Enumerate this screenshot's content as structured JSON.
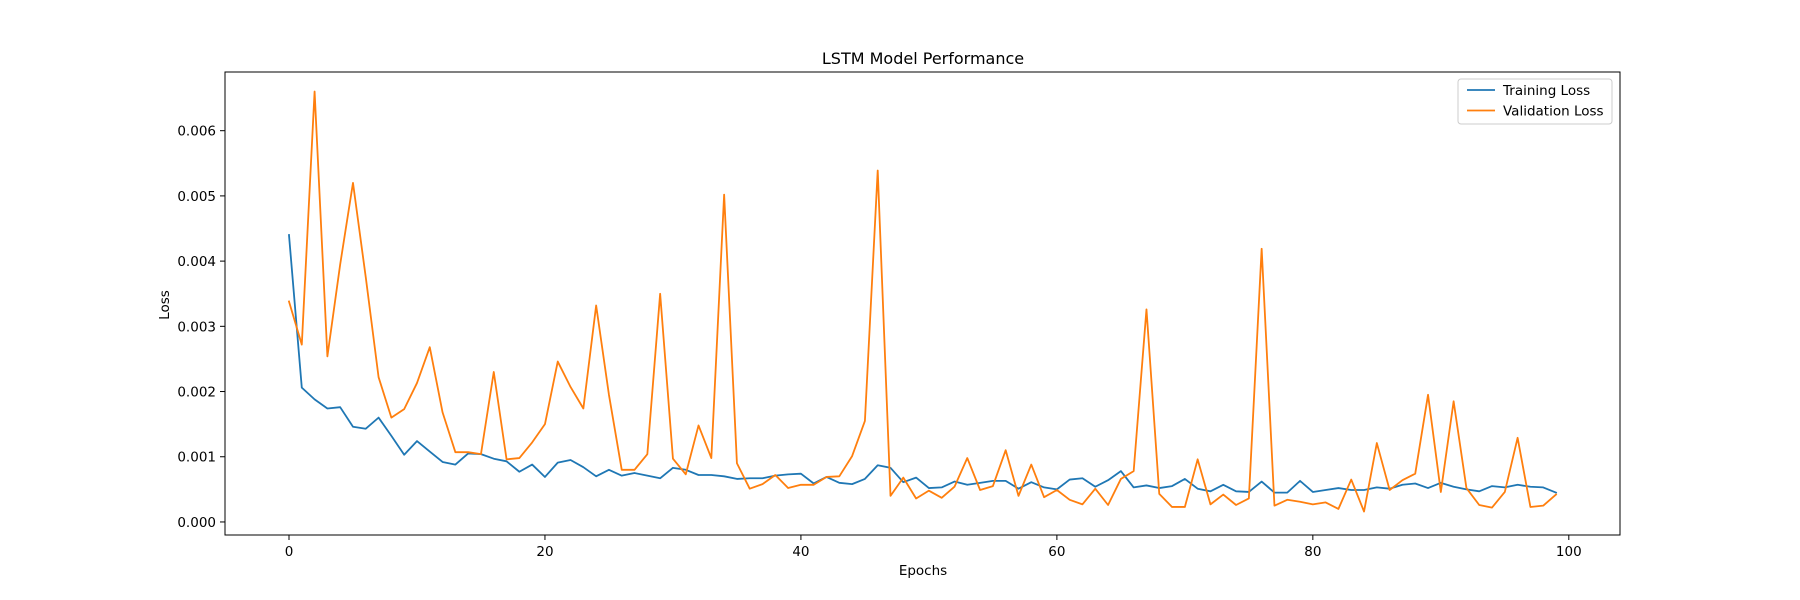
{
  "chart_data": {
    "type": "line",
    "title": "LSTM Model Performance",
    "xlabel": "Epochs",
    "ylabel": "Loss",
    "xlim": [
      -5,
      104
    ],
    "ylim": [
      -0.0002,
      0.0069
    ],
    "x_ticks": [
      0,
      20,
      40,
      60,
      80,
      100
    ],
    "x_tick_labels": [
      "0",
      "20",
      "40",
      "60",
      "80",
      "100"
    ],
    "y_ticks": [
      0,
      0.001,
      0.002,
      0.003,
      0.004,
      0.005,
      0.006
    ],
    "y_tick_labels": [
      "0.000",
      "0.001",
      "0.002",
      "0.003",
      "0.004",
      "0.005",
      "0.006"
    ],
    "grid": false,
    "legend_position": "top-right",
    "x": [
      0,
      1,
      2,
      3,
      4,
      5,
      6,
      7,
      8,
      9,
      10,
      11,
      12,
      13,
      14,
      15,
      16,
      17,
      18,
      19,
      20,
      21,
      22,
      23,
      24,
      25,
      26,
      27,
      28,
      29,
      30,
      31,
      32,
      33,
      34,
      35,
      36,
      37,
      38,
      39,
      40,
      41,
      42,
      43,
      44,
      45,
      46,
      47,
      48,
      49,
      50,
      51,
      52,
      53,
      54,
      55,
      56,
      57,
      58,
      59,
      60,
      61,
      62,
      63,
      64,
      65,
      66,
      67,
      68,
      69,
      70,
      71,
      72,
      73,
      74,
      75,
      76,
      77,
      78,
      79,
      80,
      81,
      82,
      83,
      84,
      85,
      86,
      87,
      88,
      89,
      90,
      91,
      92,
      93,
      94,
      95,
      96,
      97,
      98,
      99
    ],
    "series": [
      {
        "name": "Training Loss",
        "color": "#1f77b4",
        "values": [
          0.0044,
          0.00206,
          0.00188,
          0.00174,
          0.00176,
          0.00146,
          0.00143,
          0.0016,
          0.00132,
          0.00103,
          0.00124,
          0.00108,
          0.00092,
          0.00088,
          0.00105,
          0.00104,
          0.00097,
          0.00093,
          0.00077,
          0.00088,
          0.00069,
          0.00091,
          0.00095,
          0.00084,
          0.0007,
          0.0008,
          0.00071,
          0.00075,
          0.00071,
          0.00067,
          0.00083,
          0.0008,
          0.00072,
          0.00072,
          0.0007,
          0.00066,
          0.00067,
          0.00067,
          0.00071,
          0.00073,
          0.00074,
          0.00059,
          0.00069,
          0.0006,
          0.00058,
          0.00066,
          0.00087,
          0.00083,
          0.00061,
          0.00068,
          0.00052,
          0.00053,
          0.00062,
          0.00057,
          0.0006,
          0.00063,
          0.00063,
          0.00051,
          0.00061,
          0.00053,
          0.0005,
          0.00065,
          0.00067,
          0.00054,
          0.00064,
          0.00078,
          0.00053,
          0.00056,
          0.00052,
          0.00055,
          0.00066,
          0.00051,
          0.00047,
          0.00057,
          0.00047,
          0.00046,
          0.00062,
          0.00045,
          0.00045,
          0.00063,
          0.00046,
          0.00049,
          0.00052,
          0.00049,
          0.00049,
          0.00053,
          0.00051,
          0.00057,
          0.00059,
          0.00052,
          0.0006,
          0.00054,
          0.0005,
          0.00047,
          0.00055,
          0.00053,
          0.00057,
          0.00054,
          0.00053,
          0.00045
        ]
      },
      {
        "name": "Validation Loss",
        "color": "#ff7f0e",
        "values": [
          0.00338,
          0.00272,
          0.0066,
          0.00254,
          0.00395,
          0.0052,
          0.00375,
          0.00222,
          0.0016,
          0.00173,
          0.00213,
          0.00268,
          0.00168,
          0.00107,
          0.00107,
          0.00104,
          0.0023,
          0.00096,
          0.00098,
          0.00122,
          0.0015,
          0.00246,
          0.00207,
          0.00174,
          0.00332,
          0.00195,
          0.0008,
          0.0008,
          0.00104,
          0.0035,
          0.00097,
          0.00073,
          0.00148,
          0.00098,
          0.00502,
          0.0009,
          0.00051,
          0.00058,
          0.00072,
          0.00052,
          0.00057,
          0.00057,
          0.00069,
          0.0007,
          0.00101,
          0.00155,
          0.00539,
          0.0004,
          0.00068,
          0.00036,
          0.00048,
          0.00037,
          0.00054,
          0.00098,
          0.00049,
          0.00055,
          0.0011,
          0.0004,
          0.00088,
          0.00038,
          0.00049,
          0.00034,
          0.00027,
          0.00051,
          0.00026,
          0.00066,
          0.00078,
          0.00326,
          0.00043,
          0.00023,
          0.00023,
          0.00096,
          0.00027,
          0.00042,
          0.00026,
          0.00036,
          0.00419,
          0.00025,
          0.00034,
          0.00031,
          0.00027,
          0.0003,
          0.0002,
          0.00065,
          0.00016,
          0.00121,
          0.00049,
          0.00064,
          0.00074,
          0.00195,
          0.00046,
          0.00185,
          0.00052,
          0.00026,
          0.00022,
          0.00046,
          0.00129,
          0.00023,
          0.00025,
          0.00042
        ]
      }
    ]
  }
}
